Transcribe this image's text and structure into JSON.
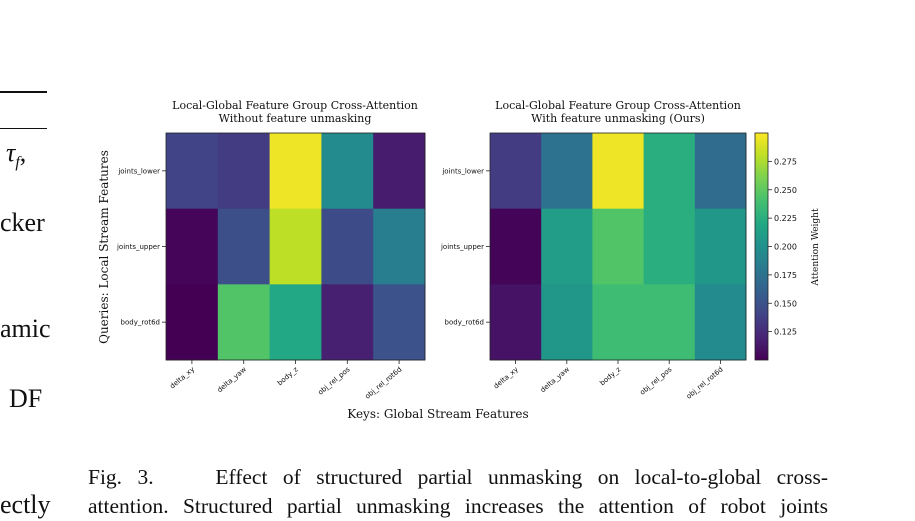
{
  "margin_fragments": [
    "τ",
    "f",
    ",",
    "cker",
    "amic",
    "DF",
    "ectly"
  ],
  "chart_data": [
    {
      "type": "heatmap",
      "title": "Local-Global Feature Group Cross-Attention\nWithout feature unmasking",
      "x_categories": [
        "delta_xy",
        "delta_yaw",
        "body_z",
        "obj_rel_pos",
        "obj_rel_rot6d"
      ],
      "y_categories": [
        "joints_lower",
        "joints_upper",
        "body_rot6d"
      ],
      "values": [
        [
          0.14,
          0.135,
          0.295,
          0.195,
          0.115
        ],
        [
          0.103,
          0.148,
          0.28,
          0.145,
          0.185
        ],
        [
          0.1,
          0.245,
          0.22,
          0.118,
          0.15
        ]
      ]
    },
    {
      "type": "heatmap",
      "title": "Local-Global Feature Group Cross-Attention\nWith feature unmasking (Ours)",
      "x_categories": [
        "delta_xy",
        "delta_yaw",
        "body_z",
        "obj_rel_pos",
        "obj_rel_rot6d"
      ],
      "y_categories": [
        "joints_lower",
        "joints_upper",
        "body_rot6d"
      ],
      "values": [
        [
          0.135,
          0.175,
          0.295,
          0.225,
          0.17
        ],
        [
          0.102,
          0.21,
          0.245,
          0.225,
          0.205
        ],
        [
          0.11,
          0.205,
          0.237,
          0.237,
          0.195
        ]
      ]
    }
  ],
  "shared_axes": {
    "ylabel": "Queries: Local Stream Features",
    "xlabel": "Keys: Global Stream Features"
  },
  "colorbar": {
    "label": "Attention Weight",
    "min": 0.1,
    "max": 0.3,
    "ticks": [
      "0.125",
      "0.150",
      "0.175",
      "0.200",
      "0.225",
      "0.250",
      "0.275"
    ],
    "colormap": "viridis"
  },
  "caption": {
    "line1": "Fig. 3.    Effect of structured partial unmasking on local-to-global cross-",
    "line2": "attention. Structured partial unmasking increases the attention of robot joints"
  }
}
